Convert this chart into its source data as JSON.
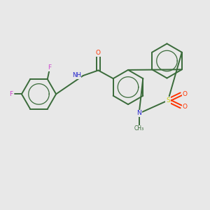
{
  "background_color": "#e8e8e8",
  "bond_color": "#3a6b3a",
  "atom_colors": {
    "F": "#cc44cc",
    "O": "#ff3300",
    "N": "#2222cc",
    "S": "#cccc00",
    "C": "#3a6b3a",
    "H": "#2222cc"
  },
  "figsize": [
    3.0,
    3.0
  ],
  "dpi": 100,
  "lw": 1.4
}
